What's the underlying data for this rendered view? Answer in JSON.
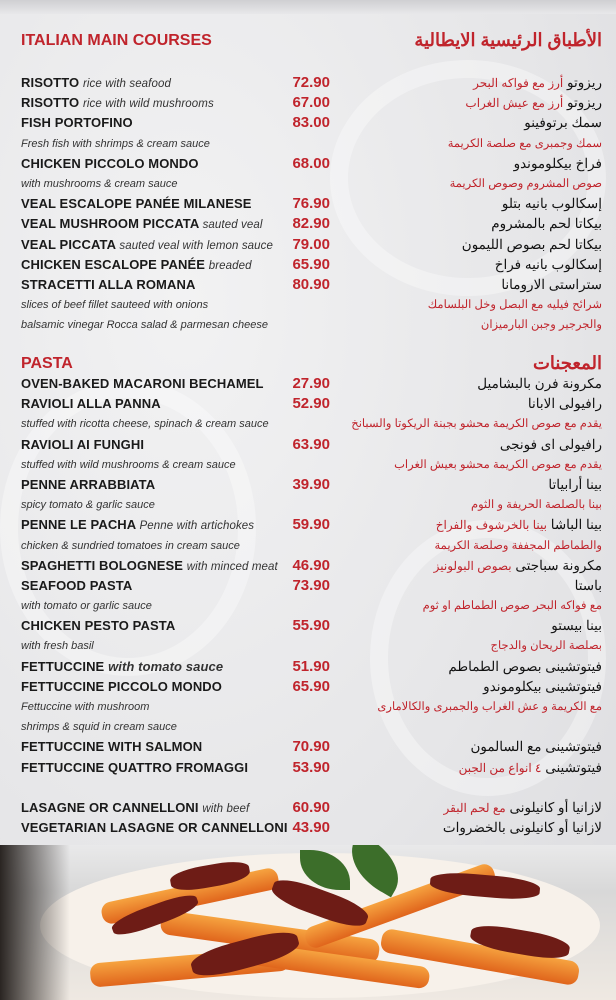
{
  "main_courses": {
    "title_en": "ITALIAN MAIN COURSES",
    "title_ar": "الأطباق الرئيسية الايطالية",
    "rows": [
      {
        "en": "RISOTTO",
        "en_desc": "rice with seafood",
        "price": "72.90",
        "ar": "ريزوتو",
        "ar_red": "أرز مع فواكه البحر"
      },
      {
        "en": "RISOTTO",
        "en_desc": "rice with wild mushrooms",
        "price": "67.00",
        "ar": "ريزوتو",
        "ar_red": "أرز مع عيش الغراب"
      },
      {
        "en": "FISH PORTOFINO",
        "price": "83.00",
        "ar": "سمك برتوفينو"
      },
      {
        "desc": "Fresh fish with shrimps & cream sauce",
        "ar_desc": "سمك وجمبرى مع صلصة الكريمة"
      },
      {
        "en": "CHICKEN PICCOLO MONDO",
        "price": "68.00",
        "ar": "فراخ بيكلوموندو"
      },
      {
        "desc": "with mushrooms & cream sauce",
        "ar_desc": "صوص المشروم وصوص الكريمة"
      },
      {
        "en": "VEAL ESCALOPE PANÉE MILANESE",
        "price": "76.90",
        "ar": "إسكالوب بانيه بتلو"
      },
      {
        "en": "VEAL MUSHROOM PICCATA",
        "en_desc": "sauted veal",
        "price": "82.90",
        "ar": "بيكاتا لحم بالمشروم"
      },
      {
        "en": "VEAL PICCATA",
        "en_desc": "sauted veal with lemon sauce",
        "price": "79.00",
        "ar": "بيكاتا لحم بصوص الليمون"
      },
      {
        "en": "CHICKEN ESCALOPE PANÉE",
        "en_desc": "breaded",
        "price": "65.90",
        "ar": "إسكالوب بانيه فراخ"
      },
      {
        "en": "STRACETTI ALLA ROMANA",
        "price": "80.90",
        "ar": "ستراستى الارومانا"
      },
      {
        "desc": "slices of beef fillet sauteed with onions",
        "ar_desc": "شرائح فيليه مع البصل وخل البلسامك"
      },
      {
        "desc": "balsamic vinegar Rocca salad & parmesan cheese",
        "ar_desc": "والجرجير وجبن البارميزان"
      }
    ]
  },
  "pasta": {
    "title_en": "PASTA",
    "title_ar": "المعجنات",
    "rows": [
      {
        "en": "OVEN-BAKED MACARONI BECHAMEL",
        "price": "27.90",
        "ar": "مكرونة فرن بالبشاميل"
      },
      {
        "en": "RAVIOLI ALLA PANNA",
        "price": "52.90",
        "ar": "رافيولى الابانا"
      },
      {
        "desc": "stuffed with ricotta cheese, spinach & cream sauce",
        "ar_desc": "يقدم مع صوص الكريمة محشو بجبنة الريكوتا والسبانخ"
      },
      {
        "en": "RAVIOLI AI FUNGHI",
        "price": "63.90",
        "ar": "رافيولى اى فونجى"
      },
      {
        "desc": "stuffed with wild mushrooms & cream sauce",
        "ar_desc": "يقدم مع صوص الكريمة محشو بعيش الغراب"
      },
      {
        "en": "PENNE ARRABBIATA",
        "price": "39.90",
        "ar": "بينا أرابياتا"
      },
      {
        "desc": "spicy tomato & garlic sauce",
        "ar_desc": "بينا بالصلصة الحريفة و الثوم"
      },
      {
        "en": "PENNE LE PACHA",
        "en_desc": "Penne with artichokes",
        "price": "59.90",
        "ar": "بينا الباشا",
        "ar_red": "بينا بالخرشوف والفراخ"
      },
      {
        "desc": "chicken & sundried tomatoes in cream sauce",
        "ar_desc": "والطماطم المجففة وصلصة الكريمة"
      },
      {
        "en": "SPAGHETTI BOLOGNESE",
        "en_desc": "with minced meat",
        "price": "46.90",
        "ar": "مكرونة سباجتى",
        "ar_red": "بصوص البولونيز"
      },
      {
        "en": "SEAFOOD PASTA",
        "price": "73.90",
        "ar": "باستا"
      },
      {
        "desc": "with tomato or garlic sauce",
        "ar_desc": "مع فواكه البحر  صوص الطماطم او ثوم"
      },
      {
        "en": "CHICKEN PESTO PASTA",
        "price": "55.90",
        "ar": "بينا بيستو"
      },
      {
        "desc": "with fresh basil",
        "ar_desc": "بصلصة الريحان والدجاج"
      },
      {
        "en": "FETTUCCINE",
        "en_desc_bold": "with tomato sauce",
        "price": "51.90",
        "ar": "فيتوتشينى بصوص الطماطم"
      },
      {
        "en": "FETTUCCINE PICCOLO MONDO",
        "price": "65.90",
        "ar": "فيتوتشينى بيكلوموندو"
      },
      {
        "desc": "Fettuccine with mushroom",
        "ar_desc": "مع الكريمة و عش الغراب والجمبرى والكالامارى"
      },
      {
        "desc": " shrimps & squid in cream sauce"
      },
      {
        "en": "FETTUCCINE WITH SALMON",
        "price": "70.90",
        "ar": "فيتوتشينى مع السالمون"
      },
      {
        "en": "FETTUCCINE QUATTRO FROMAGGI",
        "price": "53.90",
        "ar": "فيتوتشينى",
        "ar_red": "٤ انواع من الجبن"
      }
    ],
    "extra_rows": [
      {
        "en": "LASAGNE OR CANNELLONI",
        "en_desc": "with beef",
        "price": "60.90",
        "ar": "لازانيا  أو كانيلونى",
        "ar_red": "مع لحم البقر"
      },
      {
        "en": "VEGETARIAN LASAGNE OR CANNELLONI",
        "price": "43.90",
        "ar": "لازانيا أو كانيلونى بالخضروات"
      }
    ]
  },
  "colors": {
    "accent": "#c0242c",
    "text": "#1a1a1a",
    "background": "#e6e6e8"
  },
  "photo": {
    "icon": "pasta-dish-photo"
  }
}
